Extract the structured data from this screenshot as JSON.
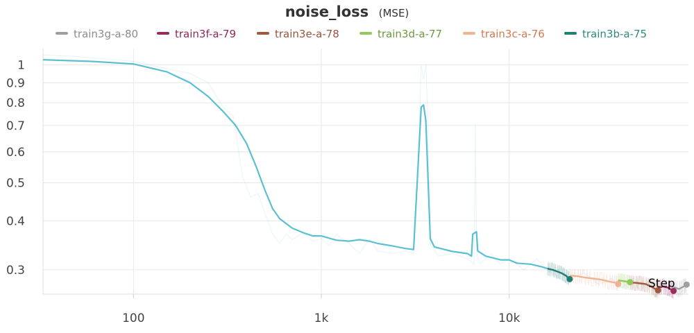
{
  "chart_data": {
    "type": "line",
    "title": "noise_loss",
    "subtitle": "(MSE)",
    "xlabel": "",
    "ylabel": "",
    "x_scale": "log",
    "y_scale": "log",
    "xlim": [
      33,
      90000
    ],
    "ylim": [
      0.26,
      1.1
    ],
    "grid": true,
    "legend_position": "top",
    "x_ticks": [
      {
        "value": 100,
        "label": "100"
      },
      {
        "value": 1000,
        "label": "1k"
      },
      {
        "value": 10000,
        "label": "10k"
      }
    ],
    "y_ticks": [
      {
        "value": 0.3,
        "label": "0.3"
      },
      {
        "value": 0.4,
        "label": "0.4"
      },
      {
        "value": 0.5,
        "label": "0.5"
      },
      {
        "value": 0.6,
        "label": "0.6"
      },
      {
        "value": 0.7,
        "label": "0.7"
      },
      {
        "value": 0.8,
        "label": "0.8"
      },
      {
        "value": 0.9,
        "label": "0.9"
      },
      {
        "value": 1,
        "label": "1"
      }
    ],
    "legend": [
      {
        "name": "train3g-a-80",
        "color": "#a0a0a0",
        "text_color": "#8c8c8c"
      },
      {
        "name": "train3f-a-79",
        "color": "#9b2c5e",
        "text_color": "#8c2756"
      },
      {
        "name": "train3e-a-78",
        "color": "#a0583e",
        "text_color": "#94553f"
      },
      {
        "name": "train3d-a-77",
        "color": "#93c75c",
        "text_color": "#6a9a40"
      },
      {
        "name": "train3c-a-76",
        "color": "#f0b494",
        "text_color": "#cf7a50"
      },
      {
        "name": "train3b-a-75",
        "color": "#247d74",
        "text_color": "#2a8a80"
      }
    ],
    "series": [
      {
        "color": "#5bbfd2",
        "points": [
          [
            33,
            1.03
          ],
          [
            60,
            1.02
          ],
          [
            100,
            1.005
          ],
          [
            150,
            0.96
          ],
          [
            200,
            0.9
          ],
          [
            250,
            0.83
          ],
          [
            300,
            0.76
          ],
          [
            350,
            0.7
          ],
          [
            400,
            0.63
          ],
          [
            450,
            0.55
          ],
          [
            500,
            0.48
          ],
          [
            550,
            0.43
          ],
          [
            600,
            0.405
          ],
          [
            700,
            0.383
          ],
          [
            800,
            0.373
          ],
          [
            900,
            0.366
          ],
          [
            1000,
            0.366
          ],
          [
            1200,
            0.357
          ],
          [
            1400,
            0.355
          ],
          [
            1600,
            0.358
          ],
          [
            1800,
            0.355
          ],
          [
            2000,
            0.35
          ],
          [
            2400,
            0.345
          ],
          [
            2800,
            0.34
          ],
          [
            3100,
            0.338
          ],
          [
            3250,
            0.52
          ],
          [
            3400,
            0.78
          ],
          [
            3500,
            0.79
          ],
          [
            3600,
            0.72
          ],
          [
            3800,
            0.36
          ],
          [
            4000,
            0.343
          ],
          [
            5000,
            0.334
          ],
          [
            6000,
            0.33
          ],
          [
            6300,
            0.325
          ],
          [
            6400,
            0.37
          ],
          [
            6700,
            0.375
          ],
          [
            6800,
            0.335
          ],
          [
            7500,
            0.325
          ],
          [
            9000,
            0.318
          ],
          [
            10000,
            0.318
          ],
          [
            11000,
            0.312
          ],
          [
            13000,
            0.31
          ],
          [
            15000,
            0.305
          ],
          [
            16000,
            0.302
          ]
        ]
      },
      {
        "name": "train3b-a-75",
        "color": "#247d74",
        "points": [
          [
            16000,
            0.302
          ],
          [
            17000,
            0.3
          ],
          [
            18000,
            0.297
          ],
          [
            19000,
            0.294
          ],
          [
            20000,
            0.29
          ],
          [
            21000,
            0.284
          ]
        ]
      },
      {
        "name": "train3c-a-76",
        "color": "#f0b494",
        "points": [
          [
            21000,
            0.29
          ],
          [
            23000,
            0.289
          ],
          [
            25000,
            0.287
          ],
          [
            28000,
            0.285
          ],
          [
            31000,
            0.283
          ],
          [
            34000,
            0.28
          ],
          [
            37000,
            0.278
          ],
          [
            38000,
            0.276
          ]
        ]
      },
      {
        "name": "train3d-a-77",
        "color": "#93c75c",
        "points": [
          [
            38000,
            0.282
          ],
          [
            40000,
            0.281
          ],
          [
            42000,
            0.28
          ],
          [
            44000,
            0.279
          ]
        ]
      },
      {
        "name": "train3e-a-78",
        "color": "#a0583e",
        "points": [
          [
            44000,
            0.278
          ],
          [
            47000,
            0.278
          ],
          [
            50000,
            0.277
          ],
          [
            53000,
            0.276
          ],
          [
            57000,
            0.272
          ],
          [
            60000,
            0.268
          ],
          [
            62000,
            0.266
          ]
        ]
      },
      {
        "name": "train3f-a-79",
        "color": "#9b2c5e",
        "points": [
          [
            62000,
            0.27
          ],
          [
            66000,
            0.272
          ],
          [
            70000,
            0.27
          ],
          [
            73000,
            0.267
          ],
          [
            75000,
            0.265
          ]
        ]
      },
      {
        "name": "train3g-a-80",
        "color": "#a0a0a0",
        "points": [
          [
            75000,
            0.271
          ],
          [
            80000,
            0.268
          ],
          [
            85000,
            0.272
          ],
          [
            88000,
            0.275
          ]
        ]
      }
    ],
    "raw_trace": {
      "color": "#5bbfd2",
      "points": [
        [
          33,
          1.06
        ],
        [
          50,
          1.05
        ],
        [
          100,
          1.02
        ],
        [
          200,
          0.95
        ],
        [
          250,
          0.9
        ],
        [
          300,
          0.78
        ],
        [
          340,
          0.74
        ],
        [
          380,
          0.52
        ],
        [
          420,
          0.46
        ],
        [
          460,
          0.47
        ],
        [
          500,
          0.42
        ],
        [
          550,
          0.37
        ],
        [
          600,
          0.35
        ],
        [
          650,
          0.37
        ],
        [
          700,
          0.358
        ],
        [
          800,
          0.373
        ],
        [
          900,
          0.355
        ],
        [
          1000,
          0.36
        ],
        [
          1100,
          0.345
        ],
        [
          1200,
          0.37
        ],
        [
          1400,
          0.35
        ],
        [
          1600,
          0.33
        ],
        [
          1800,
          0.36
        ],
        [
          2000,
          0.335
        ],
        [
          2400,
          0.33
        ],
        [
          2800,
          0.335
        ],
        [
          3100,
          0.33
        ],
        [
          3300,
          0.62
        ],
        [
          3400,
          1.0
        ],
        [
          3500,
          0.92
        ],
        [
          3600,
          1.0
        ],
        [
          3700,
          0.7
        ],
        [
          3800,
          0.35
        ],
        [
          4200,
          0.325
        ],
        [
          5000,
          0.33
        ],
        [
          6000,
          0.32
        ],
        [
          6500,
          0.31
        ],
        [
          6600,
          0.71
        ],
        [
          6700,
          0.33
        ],
        [
          7000,
          0.31
        ],
        [
          8000,
          0.33
        ],
        [
          9000,
          0.31
        ],
        [
          10000,
          0.32
        ],
        [
          12000,
          0.3
        ],
        [
          14000,
          0.32
        ],
        [
          16000,
          0.3
        ],
        [
          20000,
          0.28
        ],
        [
          25000,
          0.295
        ],
        [
          30000,
          0.275
        ],
        [
          35000,
          0.285
        ],
        [
          40000,
          0.27
        ],
        [
          45000,
          0.285
        ],
        [
          50000,
          0.265
        ],
        [
          55000,
          0.28
        ],
        [
          60000,
          0.262
        ],
        [
          70000,
          0.278
        ],
        [
          80000,
          0.26
        ],
        [
          88000,
          0.27
        ]
      ]
    },
    "markers": [
      {
        "x": 21000,
        "y": 0.284,
        "color": "#247d74"
      },
      {
        "x": 38000,
        "y": 0.276,
        "color": "#f0b494"
      },
      {
        "x": 44000,
        "y": 0.279,
        "color": "#93c75c"
      },
      {
        "x": 62000,
        "y": 0.266,
        "color": "#a0583e"
      },
      {
        "x": 75000,
        "y": 0.265,
        "color": "#9b2c5e"
      },
      {
        "x": 88000,
        "y": 0.275,
        "color": "#a0a0a0"
      }
    ],
    "annotation": {
      "text": "Step",
      "color": "#666666"
    }
  }
}
